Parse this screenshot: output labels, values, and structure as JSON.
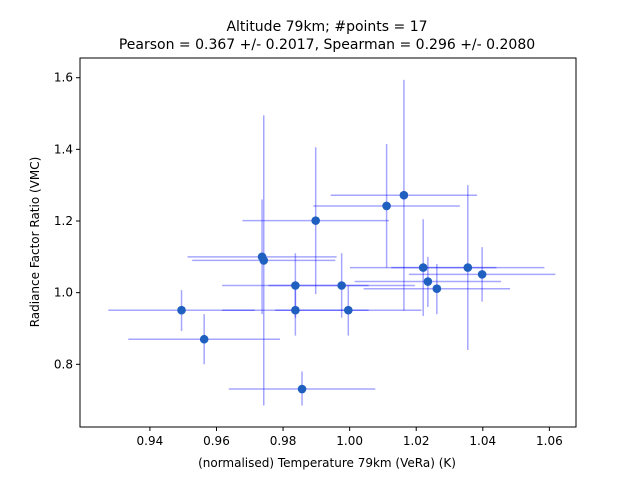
{
  "chart_data": {
    "type": "scatter",
    "title_line1": "Altitude 79km;  #points = 17",
    "title_line2": "Pearson =  0.367 +/-  0.2017, Spearman =  0.296 +/-  0.2080",
    "xlabel": "(normalised) Temperature 79km (VeRa) (K)",
    "ylabel": "Radiance Factor Ratio (VMC)",
    "xlim": [
      0.919,
      1.068
    ],
    "ylim": [
      0.625,
      1.655
    ],
    "xticks": [
      "0.94",
      "0.96",
      "0.98",
      "1.00",
      "1.02",
      "1.04",
      "1.06"
    ],
    "yticks": [
      "0.8",
      "1.0",
      "1.2",
      "1.4",
      "1.6"
    ],
    "marker_color": "#1f5fbf",
    "errorbar_color": "#0000ff",
    "points": [
      {
        "x": 0.9495,
        "y": 0.951,
        "xerr": [
          0.9275,
          0.9715
        ],
        "yerr": [
          0.893,
          1.007
        ]
      },
      {
        "x": 0.9563,
        "y": 0.87,
        "xerr": [
          0.9335,
          0.9791
        ],
        "yerr": [
          0.8,
          0.94
        ]
      },
      {
        "x": 0.9737,
        "y": 1.1,
        "xerr": [
          0.9513,
          0.9961
        ],
        "yerr": [
          0.94,
          1.26
        ]
      },
      {
        "x": 0.9742,
        "y": 1.09,
        "xerr": [
          0.9527,
          0.9957
        ],
        "yerr": [
          0.685,
          1.495
        ]
      },
      {
        "x": 0.9837,
        "y": 1.02,
        "xerr": [
          0.9617,
          1.0057
        ],
        "yerr": [
          0.93,
          1.11
        ]
      },
      {
        "x": 0.9837,
        "y": 0.951,
        "xerr": [
          0.9617,
          1.0057
        ],
        "yerr": [
          0.88,
          1.02
        ]
      },
      {
        "x": 0.9857,
        "y": 0.731,
        "xerr": [
          0.9637,
          1.0077
        ],
        "yerr": [
          0.685,
          0.78
        ]
      },
      {
        "x": 0.9898,
        "y": 1.201,
        "xerr": [
          0.9678,
          1.0118
        ],
        "yerr": [
          0.996,
          1.406
        ]
      },
      {
        "x": 0.9976,
        "y": 1.02,
        "xerr": [
          0.9756,
          1.0196
        ],
        "yerr": [
          0.93,
          1.11
        ]
      },
      {
        "x": 0.9996,
        "y": 0.951,
        "xerr": [
          0.9776,
          1.0216
        ],
        "yerr": [
          0.88,
          1.02
        ]
      },
      {
        "x": 1.0111,
        "y": 1.242,
        "xerr": [
          0.9891,
          1.0331
        ],
        "yerr": [
          1.07,
          1.415
        ]
      },
      {
        "x": 1.0163,
        "y": 1.272,
        "xerr": [
          0.9943,
          1.0383
        ],
        "yerr": [
          0.95,
          1.594
        ]
      },
      {
        "x": 1.0221,
        "y": 1.07,
        "xerr": [
          1.0001,
          1.0441
        ],
        "yerr": [
          0.935,
          1.205
        ]
      },
      {
        "x": 1.0235,
        "y": 1.031,
        "xerr": [
          1.0015,
          1.0455
        ],
        "yerr": [
          0.96,
          1.1
        ]
      },
      {
        "x": 1.0262,
        "y": 1.011,
        "xerr": [
          1.0042,
          1.0482
        ],
        "yerr": [
          0.94,
          1.08
        ]
      },
      {
        "x": 1.0355,
        "y": 1.07,
        "xerr": [
          1.0125,
          1.0585
        ],
        "yerr": [
          0.84,
          1.3
        ]
      },
      {
        "x": 1.0398,
        "y": 1.051,
        "xerr": [
          1.0178,
          1.0618
        ],
        "yerr": [
          0.975,
          1.127
        ]
      }
    ]
  }
}
